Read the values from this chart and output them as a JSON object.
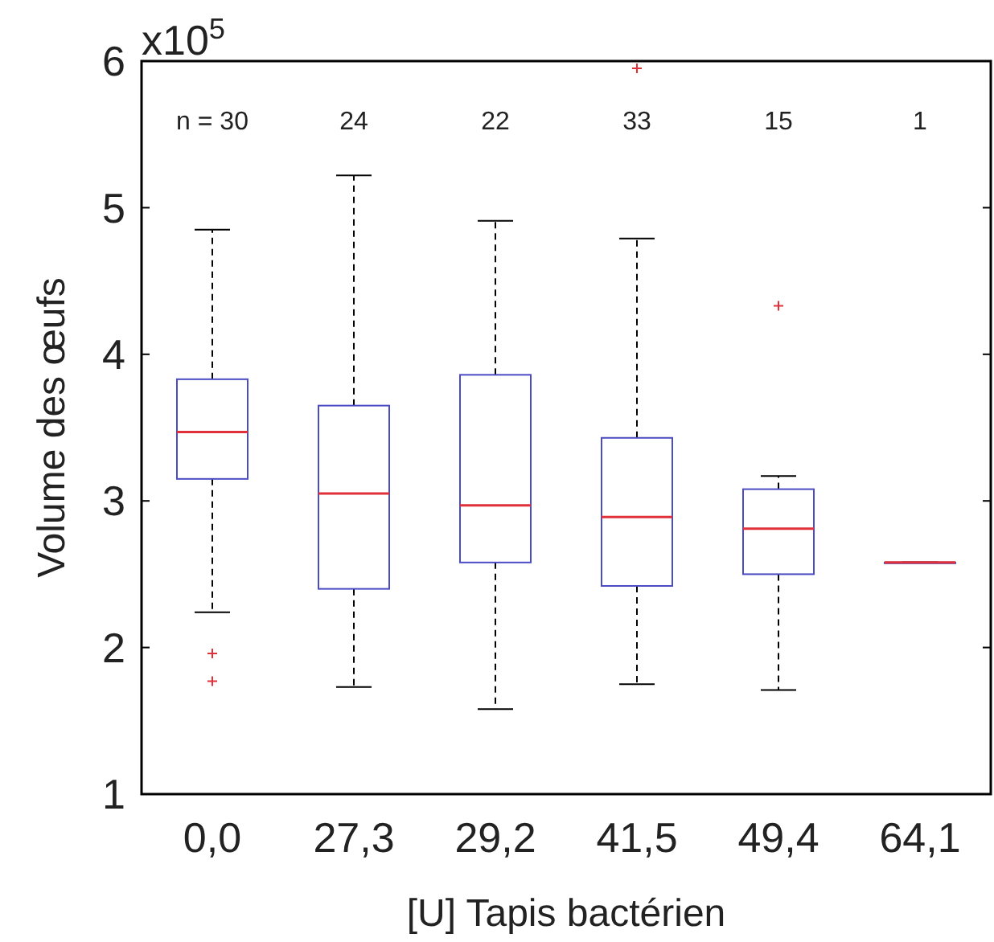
{
  "chart_data": {
    "type": "box",
    "xlabel": "[U] Tapis bactérien",
    "ylabel": "Volume des œufs",
    "categories": [
      "0,0",
      "27,3",
      "29,2",
      "41,5",
      "49,4",
      "64,1"
    ],
    "ylim": [
      1,
      6
    ],
    "yticks": [
      1,
      2,
      3,
      4,
      5,
      6
    ],
    "grid": false,
    "series": [
      {
        "color": "#4b4bc4",
        "boxes": [
          {
            "low": 2.24,
            "q1": 3.15,
            "median": 3.47,
            "q3": 3.83,
            "high": 4.85,
            "outliers": [
              1.96,
              1.77
            ]
          },
          {
            "low": 1.73,
            "q1": 2.4,
            "median": 3.05,
            "q3": 3.65,
            "high": 5.22
          },
          {
            "low": 1.58,
            "q1": 2.58,
            "median": 2.97,
            "q3": 3.86,
            "high": 4.91
          },
          {
            "low": 1.75,
            "q1": 2.42,
            "median": 2.89,
            "q3": 3.43,
            "high": 4.79,
            "outliers": [
              5.95
            ]
          },
          {
            "low": 1.71,
            "q1": 2.5,
            "median": 2.81,
            "q3": 3.08,
            "high": 3.17,
            "outliers": [
              4.33
            ]
          },
          {
            "low": 2.58,
            "q1": 2.58,
            "median": 2.58,
            "q3": 2.58,
            "high": 2.58
          }
        ]
      }
    ],
    "annotations": [
      "x10$^{5}$",
      "n = 30",
      "24",
      "22",
      "33",
      "15",
      "1"
    ]
  }
}
